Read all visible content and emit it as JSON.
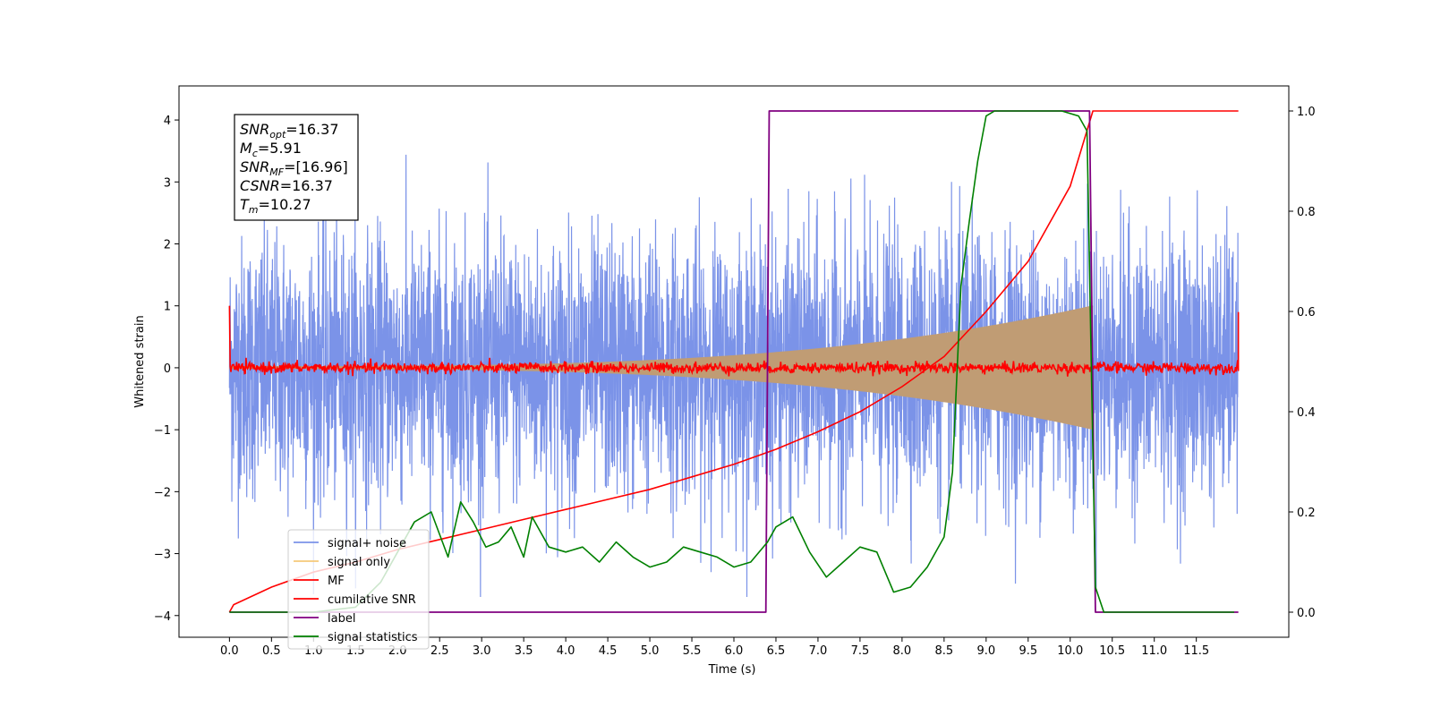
{
  "chart_data": {
    "type": "line",
    "xlabel": "Time (s)",
    "ylabel": "Whitened strain",
    "xlim": [
      -0.6,
      12.6
    ],
    "ylim_left": [
      -4.35,
      4.55
    ],
    "ylim_right": [
      -0.05,
      1.05
    ],
    "x_ticks": [
      "0.0",
      "0.5",
      "1.0",
      "1.5",
      "2.0",
      "2.5",
      "3.0",
      "3.5",
      "4.0",
      "4.5",
      "5.0",
      "5.5",
      "6.0",
      "6.5",
      "7.0",
      "7.5",
      "8.0",
      "8.5",
      "9.0",
      "9.5",
      "10.0",
      "10.5",
      "11.0",
      "11.5"
    ],
    "y_ticks_left": [
      "4",
      "3",
      "2",
      "1",
      "0",
      "−1",
      "−2",
      "−3",
      "−4"
    ],
    "y_ticks_right": [
      "1.0",
      "0.8",
      "0.6",
      "0.4",
      "0.2",
      "0.0"
    ],
    "grid": false,
    "legend_position": "lower-left",
    "annotation": [
      {
        "name": "SNR",
        "sub": "opt",
        "value": "=16.37"
      },
      {
        "name": "M",
        "sub": "c",
        "value": "=5.91"
      },
      {
        "name": "SNR",
        "sub": "MF",
        "value": "=[16.96]"
      },
      {
        "name": "CSNR",
        "sub": "",
        "value": "=16.37"
      },
      {
        "name": "T",
        "sub": "m",
        "value": "=10.27"
      }
    ],
    "series": [
      {
        "name": "signal+ noise",
        "color": "#7b93e8",
        "axis": "left",
        "description_ref": "noise",
        "amplitude_range": [
          -3.7,
          4.2
        ]
      },
      {
        "name": "signal only",
        "color": "#f5c97a",
        "axis": "left",
        "x_start": 0.0,
        "x_end": 10.27,
        "envelope_start": 0.02,
        "envelope_end": 1.0
      },
      {
        "name": "MF",
        "color": "#ff0000",
        "axis": "left",
        "baseline": 0.0,
        "edge_values": [
          1.0,
          0.9
        ]
      },
      {
        "name": "cumilative SNR",
        "color": "#ff0000",
        "axis": "right",
        "x": [
          0.0,
          0.05,
          0.5,
          1.0,
          1.5,
          2.0,
          2.5,
          3.0,
          3.5,
          4.0,
          4.5,
          5.0,
          5.5,
          6.0,
          6.5,
          7.0,
          7.5,
          8.0,
          8.5,
          9.0,
          9.5,
          10.0,
          10.27,
          12.0
        ],
        "y": [
          0.0,
          0.015,
          0.05,
          0.08,
          0.1,
          0.125,
          0.145,
          0.165,
          0.185,
          0.205,
          0.225,
          0.245,
          0.27,
          0.295,
          0.325,
          0.36,
          0.4,
          0.45,
          0.51,
          0.6,
          0.7,
          0.85,
          1.0,
          1.0
        ]
      },
      {
        "name": "label",
        "color": "#800080",
        "axis": "right",
        "x": [
          0.0,
          6.38,
          6.42,
          10.23,
          10.3,
          12.0
        ],
        "y": [
          0.0,
          0.0,
          1.0,
          1.0,
          0.0,
          0.0
        ]
      },
      {
        "name": "signal statistics",
        "color": "#008000",
        "axis": "right",
        "x": [
          0.0,
          0.5,
          1.0,
          1.5,
          1.8,
          2.0,
          2.2,
          2.4,
          2.6,
          2.75,
          2.9,
          3.05,
          3.2,
          3.35,
          3.5,
          3.6,
          3.8,
          4.0,
          4.2,
          4.4,
          4.6,
          4.8,
          5.0,
          5.2,
          5.4,
          5.6,
          5.8,
          6.0,
          6.2,
          6.4,
          6.5,
          6.7,
          6.9,
          7.1,
          7.3,
          7.5,
          7.7,
          7.9,
          8.1,
          8.3,
          8.5,
          8.6,
          8.7,
          8.8,
          8.9,
          9.0,
          9.1,
          9.3,
          9.5,
          9.7,
          9.9,
          10.1,
          10.2,
          10.25,
          10.3,
          10.4,
          10.6,
          11.0,
          11.5,
          11.95
        ],
        "y": [
          0.0,
          0.0,
          0.0,
          0.01,
          0.06,
          0.12,
          0.18,
          0.2,
          0.11,
          0.22,
          0.18,
          0.13,
          0.14,
          0.17,
          0.11,
          0.19,
          0.13,
          0.12,
          0.13,
          0.1,
          0.14,
          0.11,
          0.09,
          0.1,
          0.13,
          0.12,
          0.11,
          0.09,
          0.1,
          0.14,
          0.17,
          0.19,
          0.12,
          0.07,
          0.1,
          0.13,
          0.12,
          0.04,
          0.05,
          0.09,
          0.15,
          0.28,
          0.65,
          0.78,
          0.9,
          0.99,
          1.0,
          1.0,
          1.0,
          1.0,
          1.0,
          0.99,
          0.96,
          0.5,
          0.05,
          0.0,
          0.0,
          0.0,
          0.0,
          0.0
        ]
      }
    ]
  }
}
